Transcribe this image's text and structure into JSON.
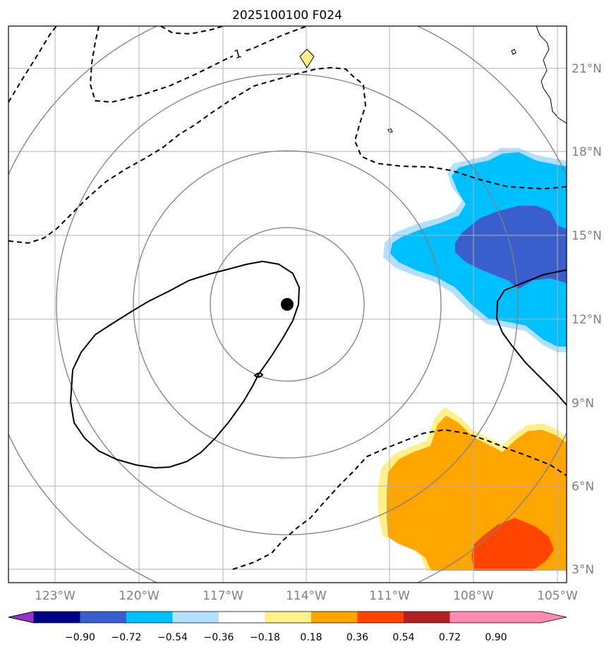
{
  "title": "2025100100 F024",
  "map": {
    "lon_ticks": [
      "123°W",
      "120°W",
      "117°W",
      "114°W",
      "111°W",
      "108°W",
      "105°W"
    ],
    "lat_ticks": [
      "21°N",
      "18°N",
      "15°N",
      "12°N",
      "9°N",
      "6°N",
      "3°N"
    ],
    "contour_label": "1",
    "storm_center": {
      "lon": -114.0,
      "lat": 12.5
    },
    "colors": {
      "neg_light": "#b3e0ff",
      "neg_mid": "#00bfff",
      "neg_strong": "#3a5fcd",
      "pos_light": "#fff08c",
      "pos_mid": "#ffa500",
      "pos_strong": "#ff4500",
      "grid": "#b0b0b0",
      "range_ring": "#808080"
    }
  },
  "colorbar": {
    "labels": [
      "−0.90",
      "−0.72",
      "−0.54",
      "−0.36",
      "−0.18",
      "0.18",
      "0.36",
      "0.54",
      "0.72",
      "0.90"
    ],
    "colors": [
      "#9932cc",
      "#00008b",
      "#3a5fcd",
      "#00bfff",
      "#b3e0ff",
      "#ffffff",
      "#fff08c",
      "#ffa500",
      "#ff4500",
      "#b22222",
      "#ff8ab4"
    ]
  }
}
